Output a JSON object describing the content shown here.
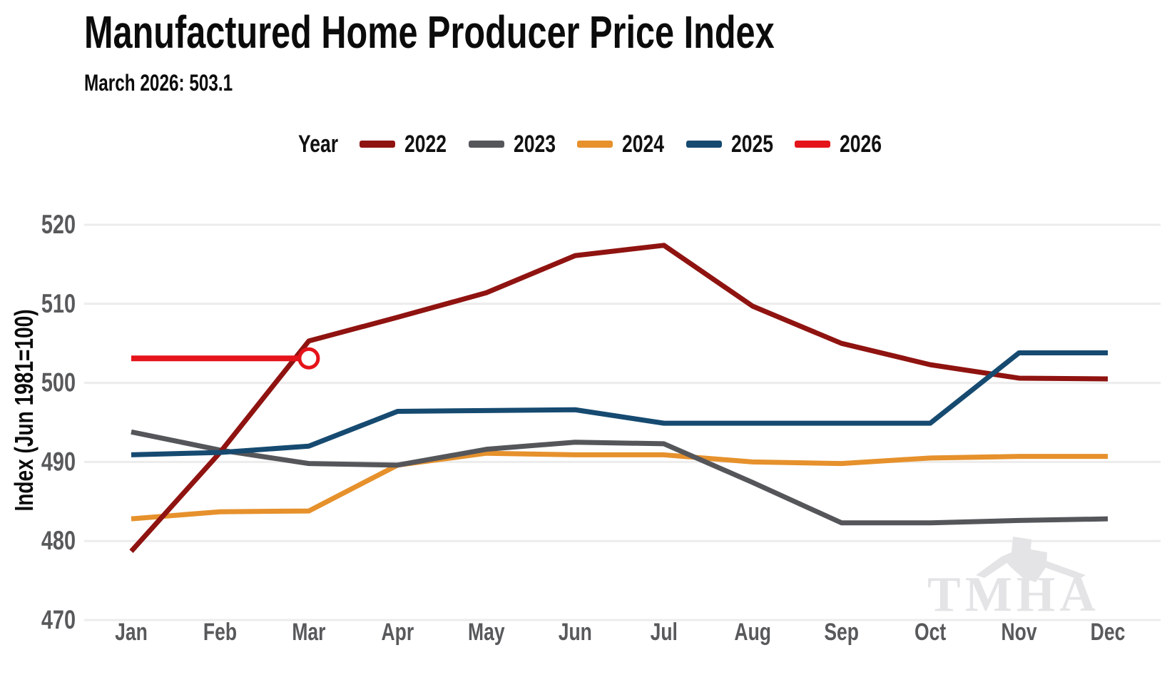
{
  "header": {
    "title": "Manufactured Home Producer Price Index",
    "subtitle": "March 2026: 503.1"
  },
  "legend": {
    "title": "Year",
    "items": [
      {
        "label": "2022",
        "color": "#8F1310"
      },
      {
        "label": "2023",
        "color": "#55565A"
      },
      {
        "label": "2024",
        "color": "#E6912C"
      },
      {
        "label": "2025",
        "color": "#164A70"
      },
      {
        "label": "2026",
        "color": "#E5131A"
      }
    ]
  },
  "chart_data": {
    "type": "line",
    "title": "Manufactured Home Producer Price Index",
    "subtitle": "March 2026: 503.1",
    "xlabel": "",
    "ylabel": "Index (Jun 1981=100)",
    "categories": [
      "Jan",
      "Feb",
      "Mar",
      "Apr",
      "May",
      "Jun",
      "Jul",
      "Aug",
      "Sep",
      "Oct",
      "Nov",
      "Dec"
    ],
    "yticks": [
      470,
      480,
      490,
      500,
      510,
      520
    ],
    "ylim": [
      466,
      523
    ],
    "grid": "horizontal",
    "legend_position": "top",
    "series": [
      {
        "name": "2024",
        "color": "#E6912C",
        "values": [
          482.8,
          483.7,
          483.8,
          489.6,
          491.1,
          490.9,
          490.9,
          490.0,
          489.8,
          490.5,
          490.7,
          490.7
        ]
      },
      {
        "name": "2023",
        "color": "#55565A",
        "values": [
          493.8,
          491.5,
          489.8,
          489.6,
          491.6,
          492.5,
          492.3,
          487.4,
          482.3,
          482.3,
          482.6,
          482.8
        ]
      },
      {
        "name": "2022",
        "color": "#8F1310",
        "values": [
          478.7,
          491.2,
          505.3,
          508.3,
          511.4,
          516.1,
          517.4,
          509.7,
          505.0,
          502.3,
          500.6,
          500.5
        ]
      },
      {
        "name": "2025",
        "color": "#164A70",
        "values": [
          490.9,
          491.2,
          492.0,
          496.4,
          496.5,
          496.6,
          494.9,
          494.9,
          494.9,
          494.9,
          503.8,
          503.8
        ]
      },
      {
        "name": "2026",
        "color": "#E5131A",
        "values": [
          503.1,
          503.1,
          503.1
        ]
      }
    ],
    "annotations": {
      "latest_marker": {
        "series": "2026",
        "category": "Mar",
        "value": 503.1,
        "shape": "open-circle",
        "color": "#E5131A"
      }
    }
  },
  "watermark": {
    "text": "TMHA",
    "color": "#E4E4E6"
  },
  "colors": {
    "grid": "#ECECEC",
    "tick_text": "#58595B",
    "axis_title_text": "#0b0b0b",
    "background": "#ffffff"
  }
}
